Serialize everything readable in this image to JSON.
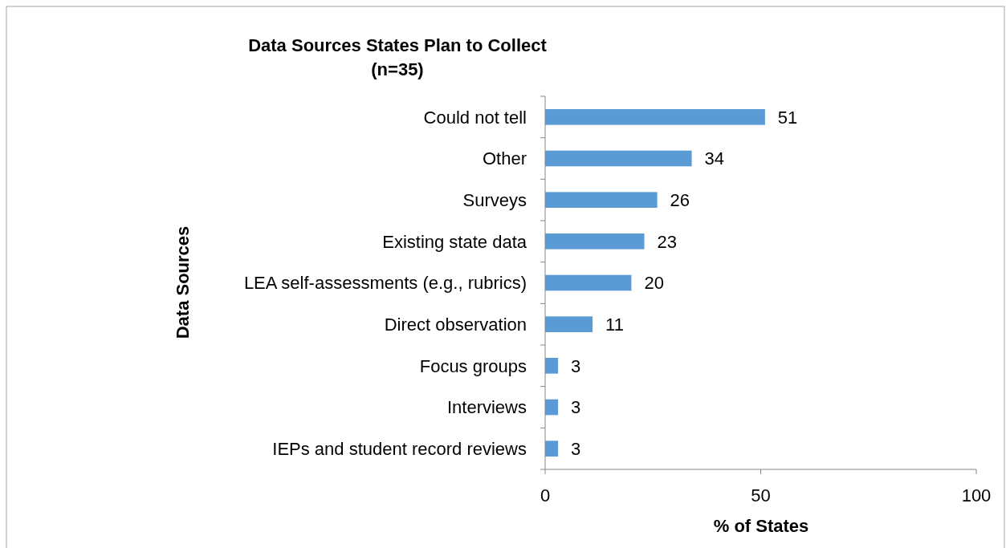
{
  "chart_data": {
    "type": "bar",
    "orientation": "horizontal",
    "title": "Data Sources States Plan to Collect",
    "subtitle": "(n=35)",
    "xlabel": "% of States",
    "ylabel": "Data Sources",
    "categories": [
      "Could not tell",
      "Other",
      "Surveys",
      "Existing state data",
      "LEA self-assessments (e.g., rubrics)",
      "Direct observation",
      "Focus groups",
      "Interviews",
      "IEPs and student record reviews"
    ],
    "values": [
      51,
      34,
      26,
      23,
      20,
      11,
      3,
      3,
      3
    ],
    "color": "#5b9bd5",
    "xlim": [
      0,
      100
    ],
    "xticks": [
      0,
      50,
      100
    ],
    "data_labels": true
  }
}
